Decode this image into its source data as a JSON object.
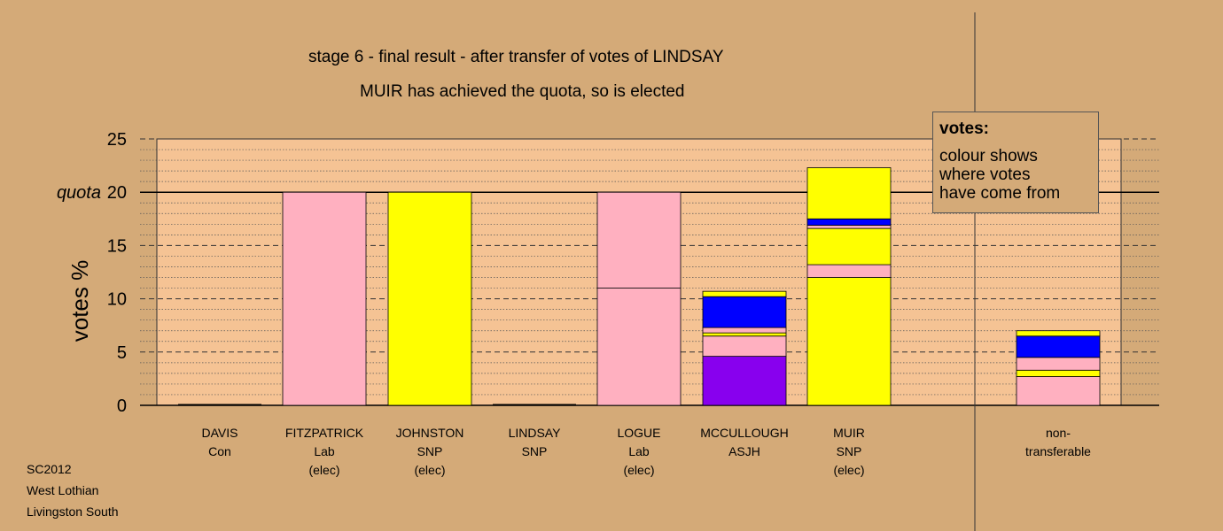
{
  "titles": {
    "line1": "stage 6 - final result - after transfer of votes of LINDSAY",
    "line2": "MUIR has achieved the quota, so is elected"
  },
  "footer": [
    "SC2012",
    "West Lothian",
    "Livingston South"
  ],
  "legend": {
    "title": "votes:",
    "lines": [
      "colour shows",
      "where votes",
      "have come from"
    ]
  },
  "colors": {
    "background": "#d4aa78",
    "plot_area": "#f5c394",
    "Lab": "#ffb0c0",
    "SNP": "#ffff00",
    "Con": "#0000ff",
    "ASJH": "#8800ee"
  },
  "chart_data": {
    "type": "bar",
    "stacked": true,
    "ylabel": "votes %",
    "ylim": [
      0,
      25
    ],
    "yticks": [
      0,
      5,
      10,
      15,
      20,
      25
    ],
    "quota": 20,
    "quota_label": "quota",
    "grid": true,
    "categories": [
      {
        "name": "DAVIS",
        "party": "Con",
        "status": ""
      },
      {
        "name": "FITZPATRICK",
        "party": "Lab",
        "status": "(elec)"
      },
      {
        "name": "JOHNSTON",
        "party": "SNP",
        "status": "(elec)"
      },
      {
        "name": "LINDSAY",
        "party": "SNP",
        "status": ""
      },
      {
        "name": "LOGUE",
        "party": "Lab",
        "status": "(elec)"
      },
      {
        "name": "MCCULLOUGH",
        "party": "ASJH",
        "status": ""
      },
      {
        "name": "MUIR",
        "party": "SNP",
        "status": "(elec)"
      },
      {
        "name": "non-",
        "party": "transferable",
        "status": ""
      }
    ],
    "bars": [
      [],
      [
        {
          "value": 20.0,
          "source": "Lab"
        }
      ],
      [
        {
          "value": 20.0,
          "source": "SNP"
        }
      ],
      [],
      [
        {
          "value": 11.0,
          "source": "Lab"
        },
        {
          "value": 9.0,
          "source": "Lab"
        }
      ],
      [
        {
          "value": 4.6,
          "source": "ASJH"
        },
        {
          "value": 1.9,
          "source": "Lab"
        },
        {
          "value": 0.3,
          "source": "SNP"
        },
        {
          "value": 0.5,
          "source": "Lab"
        },
        {
          "value": 2.9,
          "source": "Con"
        },
        {
          "value": 0.5,
          "source": "SNP"
        }
      ],
      [
        {
          "value": 12.0,
          "source": "SNP"
        },
        {
          "value": 1.2,
          "source": "Lab"
        },
        {
          "value": 3.4,
          "source": "SNP"
        },
        {
          "value": 0.3,
          "source": "Lab"
        },
        {
          "value": 0.6,
          "source": "Con"
        },
        {
          "value": 4.8,
          "source": "SNP"
        }
      ],
      [
        {
          "value": 2.7,
          "source": "Lab"
        },
        {
          "value": 0.6,
          "source": "SNP"
        },
        {
          "value": 1.2,
          "source": "Lab"
        },
        {
          "value": 2.0,
          "source": "Con"
        },
        {
          "value": 0.5,
          "source": "SNP"
        }
      ]
    ]
  }
}
